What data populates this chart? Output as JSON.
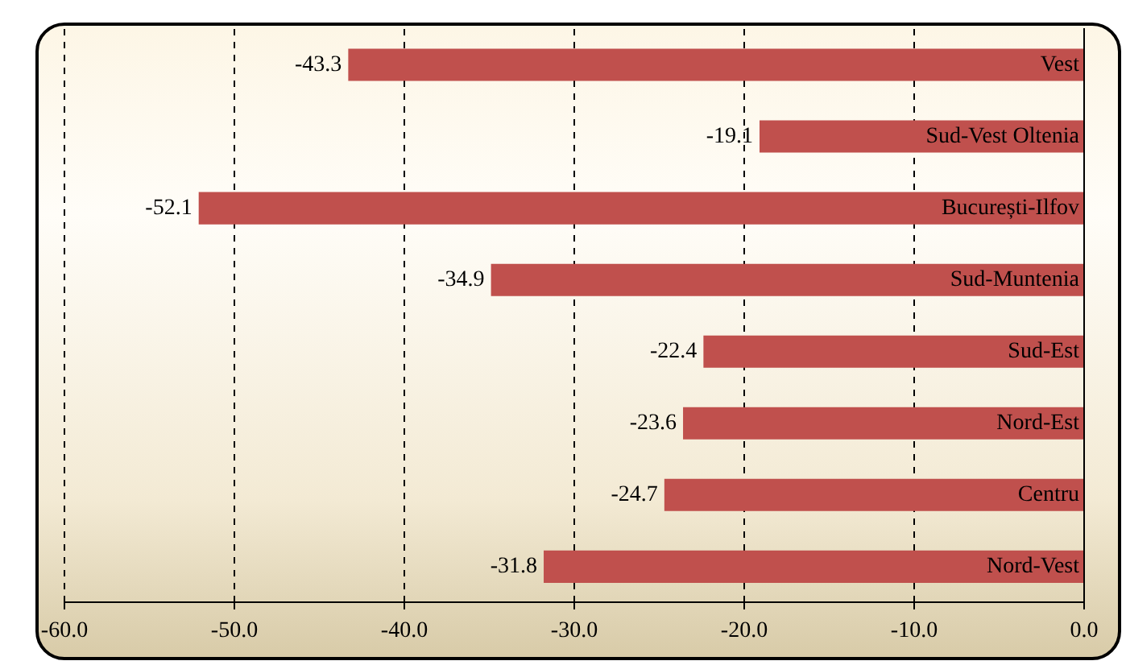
{
  "chart_data": {
    "type": "bar",
    "orientation": "horizontal",
    "categories": [
      "Vest",
      "Sud-Vest Oltenia",
      "București-Ilfov",
      "Sud-Muntenia",
      "Sud-Est",
      "Nord-Est",
      "Centru",
      "Nord-Vest"
    ],
    "values": [
      -43.3,
      -19.1,
      -52.1,
      -34.9,
      -22.4,
      -23.6,
      -24.7,
      -31.8
    ],
    "color": "#c0504d",
    "xlim": [
      -60,
      0
    ],
    "xticks": [
      {
        "value": -60,
        "label": "-60.0"
      },
      {
        "value": -50,
        "label": "-50.0"
      },
      {
        "value": -40,
        "label": "-40.0"
      },
      {
        "value": -30,
        "label": "-30.0"
      },
      {
        "value": -20,
        "label": "-20.0"
      },
      {
        "value": -10,
        "label": "-10.0"
      },
      {
        "value": 0,
        "label": "0.0"
      }
    ],
    "grid": "x",
    "data_labels": true,
    "legend": false
  }
}
